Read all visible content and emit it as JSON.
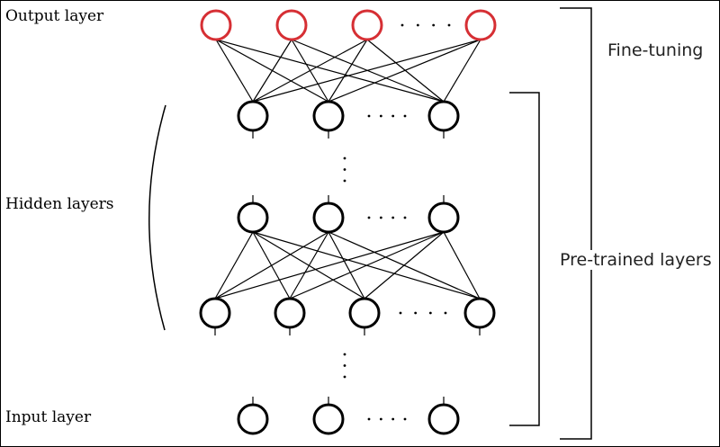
{
  "labels": {
    "output_layer": "Output layer",
    "hidden_layers": "Hidden layers",
    "input_layer": "Input layer",
    "fine_tuning": "Fine-tuning",
    "pre_trained_layers": "Pre-trained layers"
  },
  "colors": {
    "output_node": "#d62f34",
    "node": "#000000",
    "edge": "#000000"
  }
}
